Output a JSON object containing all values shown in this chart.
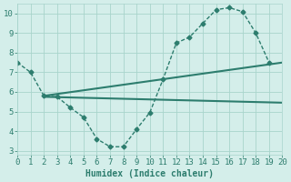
{
  "line1_x": [
    0,
    1,
    2,
    3,
    4,
    5,
    6,
    7,
    8,
    9,
    10,
    11,
    12,
    13,
    14,
    15,
    16,
    17,
    18,
    19
  ],
  "line1_y": [
    7.5,
    7.0,
    5.8,
    5.75,
    5.2,
    4.7,
    3.6,
    3.2,
    3.2,
    4.1,
    4.95,
    6.65,
    8.5,
    8.8,
    9.5,
    10.2,
    10.3,
    10.1,
    9.0,
    7.5
  ],
  "line2_x": [
    2,
    20
  ],
  "line2_y": [
    5.8,
    7.5
  ],
  "line3_x": [
    2,
    20
  ],
  "line3_y": [
    5.75,
    5.45
  ],
  "line_color": "#2d7d6e",
  "bg_color": "#d4eeea",
  "grid_color": "#a8d4cc",
  "xlabel": "Humidex (Indice chaleur)",
  "xlim": [
    0,
    20
  ],
  "ylim": [
    2.8,
    10.5
  ],
  "yticks": [
    3,
    4,
    5,
    6,
    7,
    8,
    9,
    10
  ],
  "xticks": [
    0,
    1,
    2,
    3,
    4,
    5,
    6,
    7,
    8,
    9,
    10,
    11,
    12,
    13,
    14,
    15,
    16,
    17,
    18,
    19,
    20
  ],
  "marker": "D",
  "markersize": 2.5,
  "linewidth": 1.0,
  "solid_linewidth": 1.5,
  "xlabel_fontsize": 7,
  "tick_fontsize": 6.5
}
